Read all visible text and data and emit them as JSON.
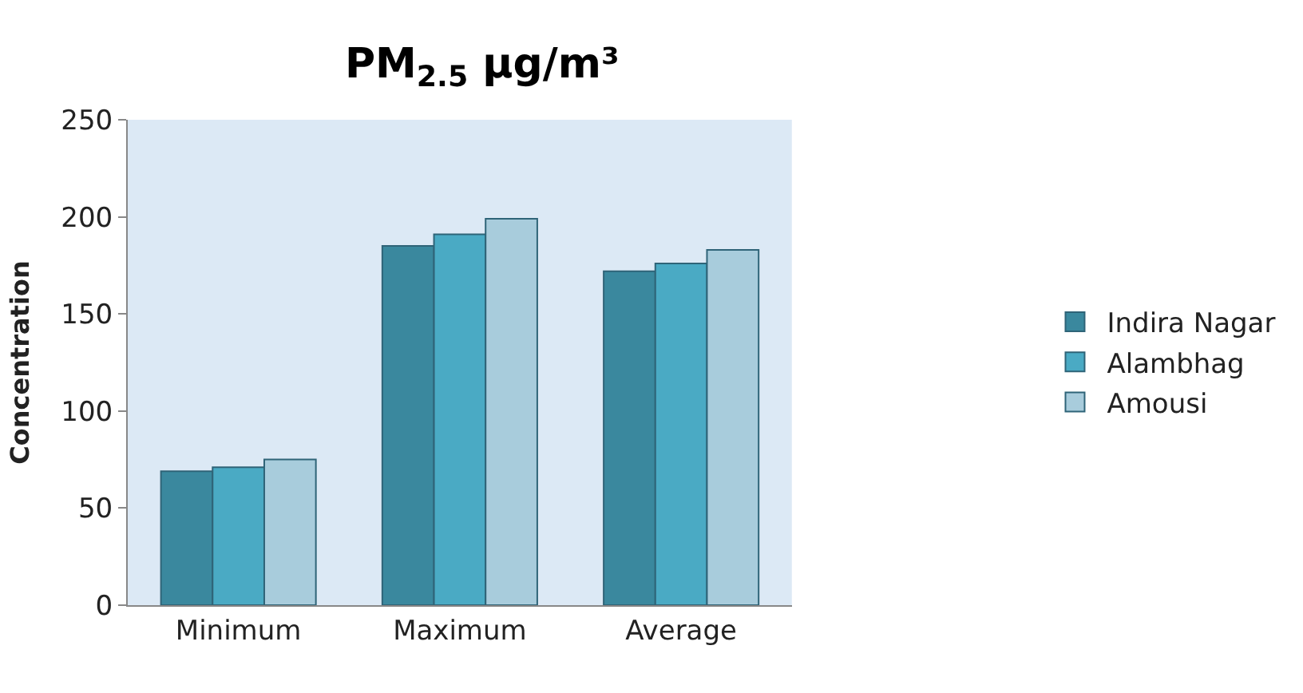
{
  "chart_data": {
    "type": "bar",
    "title": "PM$_{2.5}$ µg/m³",
    "ylabel": "Concentration",
    "categories": [
      "Minimum",
      "Maximum",
      "Average"
    ],
    "series": [
      {
        "name": "Indira Nagar",
        "color": "#3a889e",
        "values": [
          69,
          185,
          172
        ]
      },
      {
        "name": "Alambhag",
        "color": "#4aaac4",
        "values": [
          71,
          191,
          176
        ]
      },
      {
        "name": "Amousi",
        "color": "#a8ccdc",
        "values": [
          75,
          199,
          183
        ]
      }
    ],
    "ylim": [
      0,
      250
    ],
    "yticks": [
      0,
      50,
      100,
      150,
      200,
      250
    ],
    "grid": false,
    "legend": "right"
  }
}
